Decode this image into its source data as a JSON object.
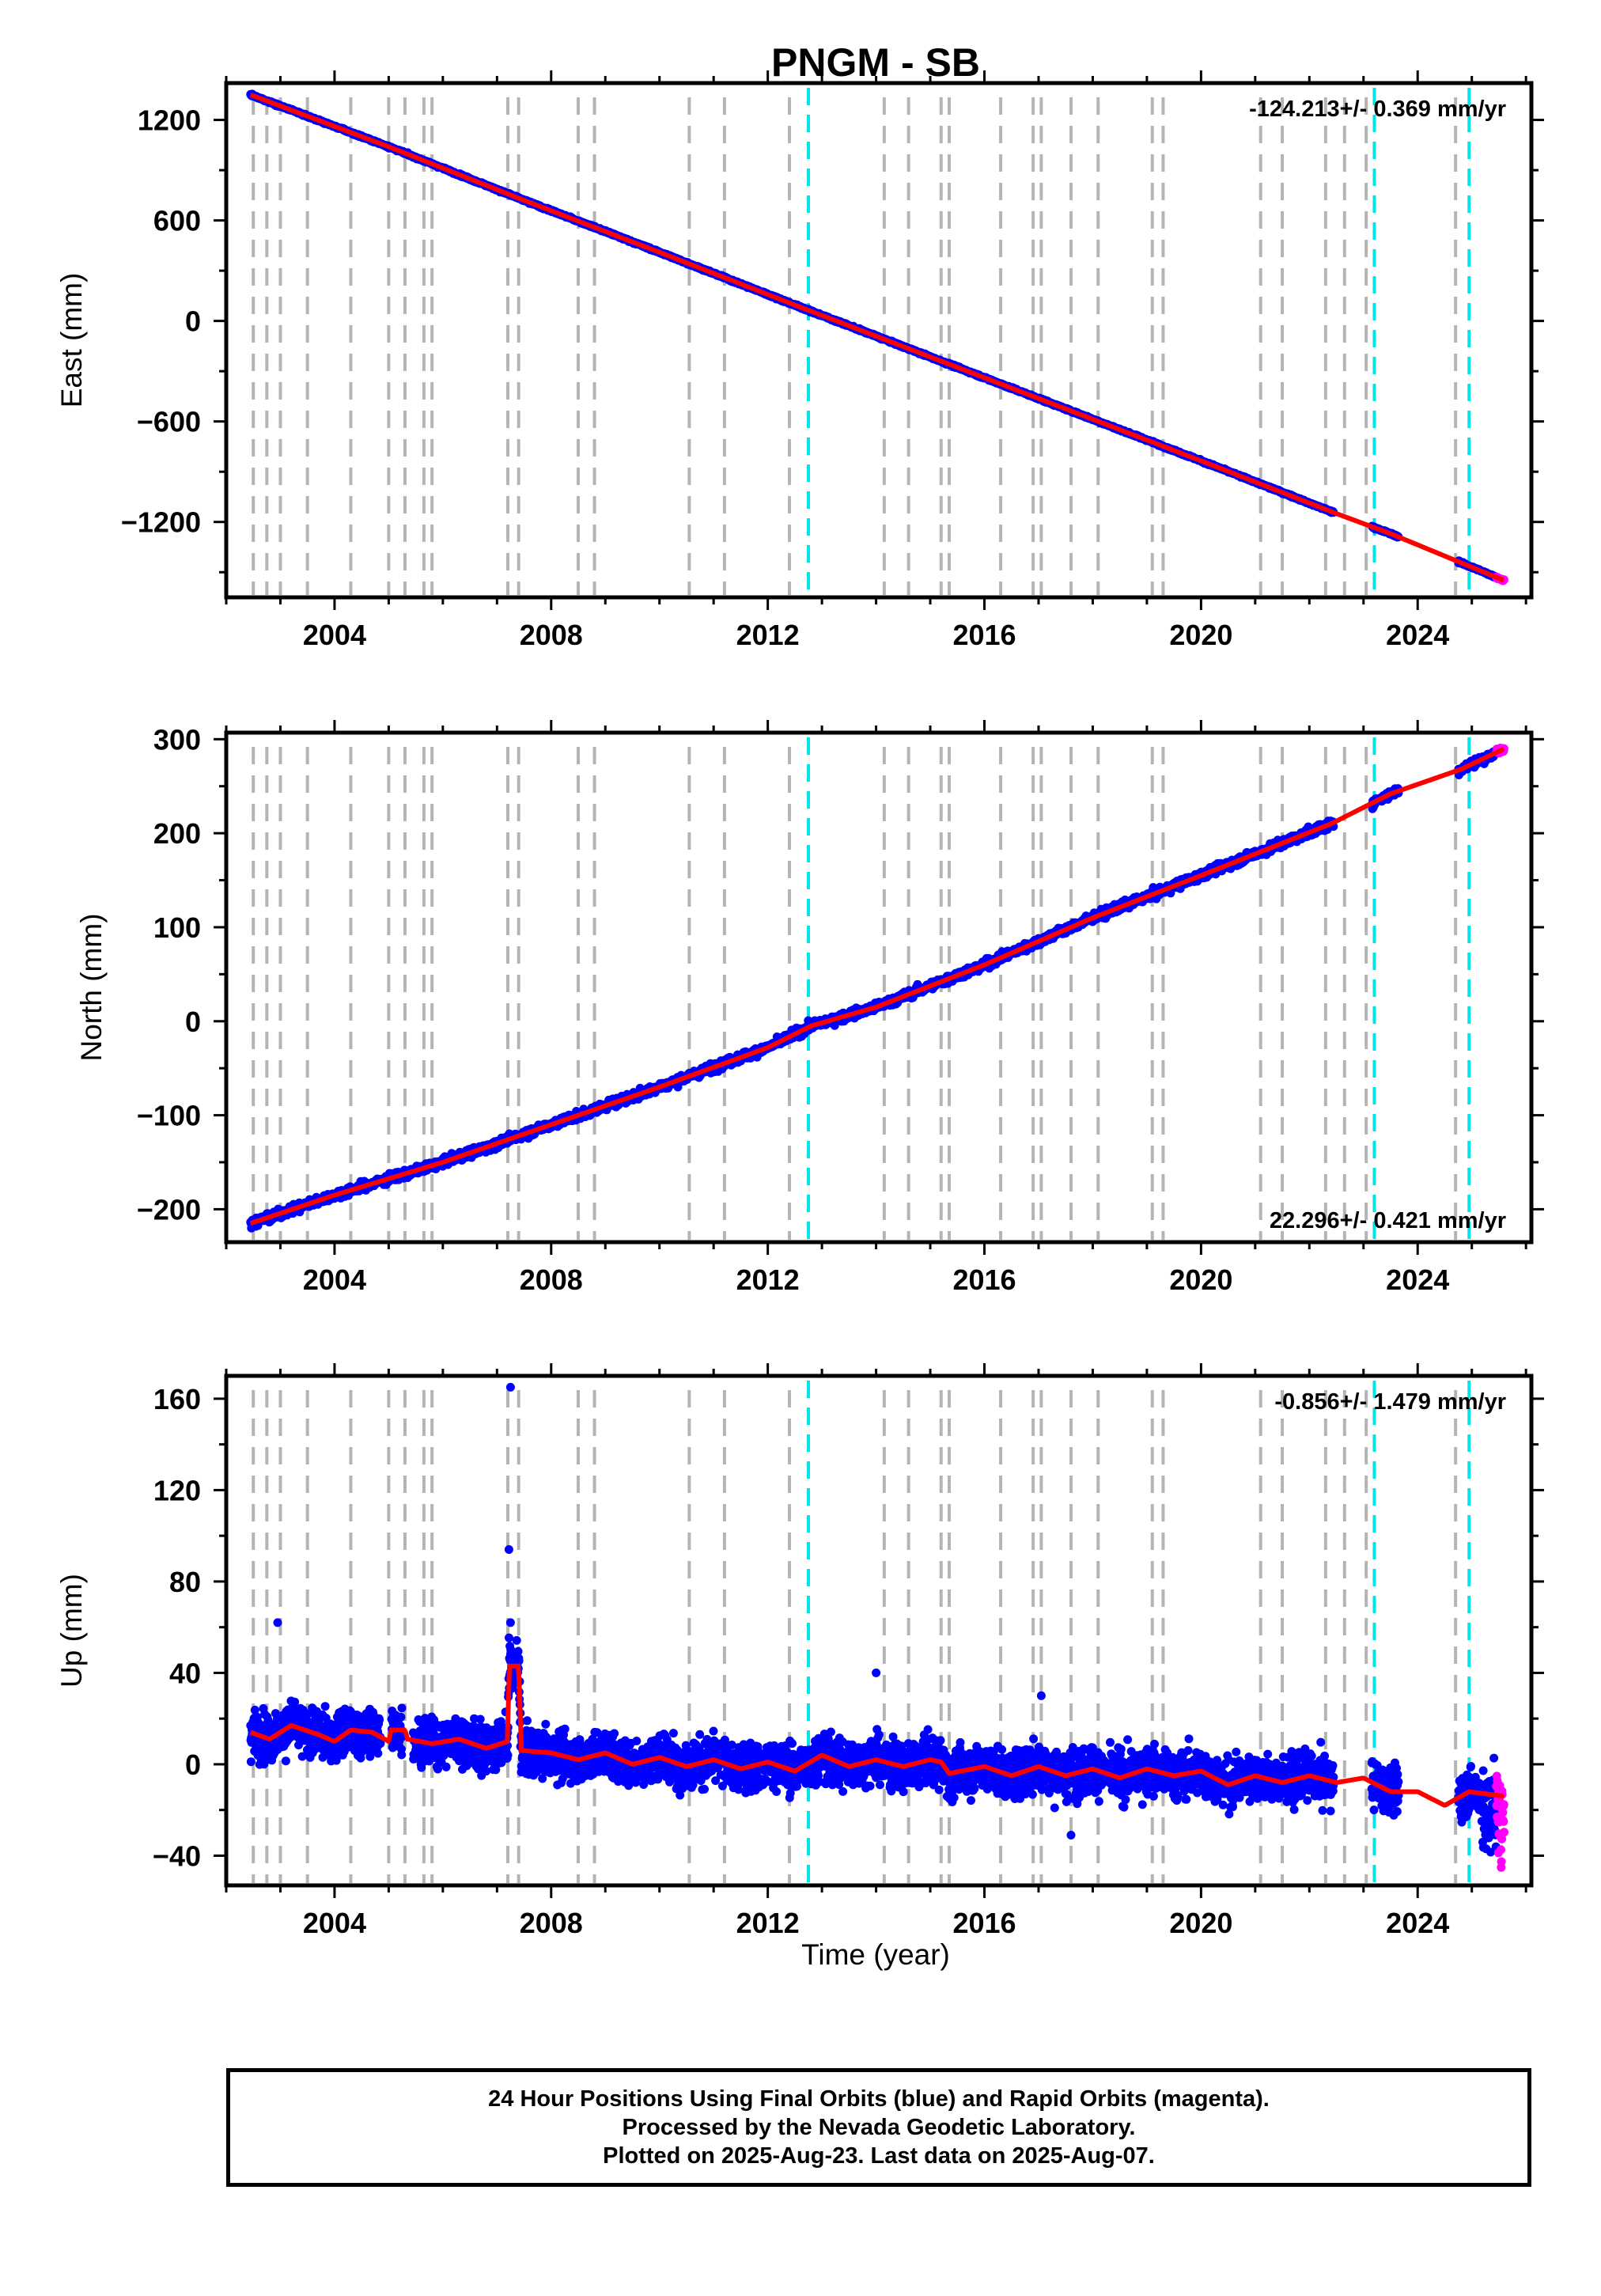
{
  "figure": {
    "title": "PNGM - SB",
    "xlabel": "Time (year)"
  },
  "footer": {
    "lines": [
      "24 Hour Positions Using Final Orbits (blue) and Rapid Orbits (magenta).",
      "Processed by the Nevada Geodetic Laboratory.",
      "Plotted on 2025-Aug-23. Last data on 2025-Aug-07."
    ]
  },
  "colors": {
    "final_orbits": "#0000ff",
    "rapid_orbits": "#ff00ff",
    "model_fit": "#ff0000",
    "equipment_change": "#b4b4b4",
    "earthquake": "#00e5e5"
  },
  "chart_data": [
    {
      "type": "scatter",
      "panel": "east",
      "ylabel": "East (mm)",
      "rate_text": "-124.213+/- 0.369 mm/yr",
      "rate_position": "top-right",
      "xlim": [
        2002.0,
        2026.1
      ],
      "ylim": [
        -1650,
        1420
      ],
      "xticks": [
        2004,
        2008,
        2012,
        2016,
        2020,
        2024
      ],
      "yticks": [
        -1200,
        -600,
        0,
        600,
        1200
      ],
      "yticklabels": [
        "−1200",
        "−600",
        "0",
        "600",
        "1200"
      ],
      "grid": false,
      "equipment_change_epochs": [
        2002.5,
        2002.75,
        2003.0,
        2003.5,
        2004.3,
        2005.0,
        2005.3,
        2005.65,
        2005.8,
        2007.2,
        2007.4,
        2008.5,
        2008.8,
        2010.55,
        2011.2,
        2012.4,
        2014.15,
        2014.6,
        2015.2,
        2015.35,
        2016.3,
        2016.9,
        2017.05,
        2017.6,
        2018.1,
        2019.1,
        2019.3,
        2021.1,
        2021.5,
        2022.3,
        2022.65,
        2023.05,
        2024.7
      ],
      "earthquake_epochs": [
        2012.75,
        2023.2,
        2024.95
      ],
      "data_span": [
        2002.45,
        2025.6
      ],
      "gaps": [
        [
          2022.45,
          2023.15
        ],
        [
          2023.65,
          2024.75
        ]
      ],
      "rapid_orbit_start": 2025.45,
      "model": {
        "points": [
          [
            2002.45,
            1350
          ],
          [
            2005.0,
            1040
          ],
          [
            2007.5,
            720
          ],
          [
            2010.0,
            410
          ],
          [
            2012.5,
            95
          ],
          [
            2015.0,
            -215
          ],
          [
            2017.5,
            -525
          ],
          [
            2020.0,
            -835
          ],
          [
            2022.5,
            -1150
          ],
          [
            2023.5,
            -1270
          ],
          [
            2025.6,
            -1550
          ]
        ]
      }
    },
    {
      "type": "scatter",
      "panel": "north",
      "ylabel": "North (mm)",
      "rate_text": "22.296+/- 0.421 mm/yr",
      "rate_position": "bottom-right",
      "xlim": [
        2002.0,
        2026.1
      ],
      "ylim": [
        -235,
        307
      ],
      "xticks": [
        2004,
        2008,
        2012,
        2016,
        2020,
        2024
      ],
      "yticks": [
        -200,
        -100,
        0,
        100,
        200,
        300
      ],
      "yticklabels": [
        "−200",
        "−100",
        "0",
        "100",
        "200",
        "300"
      ],
      "grid": false,
      "equipment_change_epochs": [
        2002.5,
        2002.75,
        2003.0,
        2003.5,
        2004.3,
        2005.0,
        2005.3,
        2005.65,
        2005.8,
        2007.2,
        2007.4,
        2008.5,
        2008.8,
        2010.55,
        2011.2,
        2012.4,
        2014.15,
        2014.6,
        2015.2,
        2015.35,
        2016.3,
        2016.9,
        2017.05,
        2017.6,
        2018.1,
        2019.1,
        2019.3,
        2021.1,
        2021.5,
        2022.3,
        2022.65,
        2023.05,
        2024.7
      ],
      "earthquake_epochs": [
        2012.75,
        2023.2,
        2024.95
      ],
      "data_span": [
        2002.45,
        2025.6
      ],
      "gaps": [
        [
          2022.45,
          2023.15
        ],
        [
          2023.65,
          2024.75
        ]
      ],
      "rapid_orbit_start": 2025.45,
      "model": {
        "points": [
          [
            2002.45,
            -215
          ],
          [
            2004.0,
            -185
          ],
          [
            2006.0,
            -150
          ],
          [
            2008.0,
            -110
          ],
          [
            2010.0,
            -70
          ],
          [
            2012.0,
            -28
          ],
          [
            2012.8,
            -5
          ],
          [
            2014.0,
            15
          ],
          [
            2016.0,
            60
          ],
          [
            2018.0,
            110
          ],
          [
            2020.0,
            155
          ],
          [
            2022.4,
            210
          ],
          [
            2023.5,
            242
          ],
          [
            2024.8,
            268
          ],
          [
            2025.6,
            290
          ]
        ]
      }
    },
    {
      "type": "scatter",
      "panel": "up",
      "ylabel": "Up (mm)",
      "rate_text": "-0.856+/- 1.479 mm/yr",
      "rate_position": "top-right",
      "xlim": [
        2002.0,
        2026.1
      ],
      "ylim": [
        -53,
        170
      ],
      "xticks": [
        2004,
        2008,
        2012,
        2016,
        2020,
        2024
      ],
      "yticks": [
        -40,
        0,
        40,
        80,
        120,
        160
      ],
      "yticklabels": [
        "−40",
        "0",
        "40",
        "80",
        "120",
        "160"
      ],
      "grid": false,
      "equipment_change_epochs": [
        2002.5,
        2002.75,
        2003.0,
        2003.5,
        2004.3,
        2005.0,
        2005.3,
        2005.65,
        2005.8,
        2007.2,
        2007.4,
        2008.5,
        2008.8,
        2010.55,
        2011.2,
        2012.4,
        2014.15,
        2014.6,
        2015.2,
        2015.35,
        2016.3,
        2016.9,
        2017.05,
        2017.6,
        2018.1,
        2019.1,
        2019.3,
        2021.1,
        2021.5,
        2022.3,
        2022.65,
        2023.05,
        2024.7
      ],
      "earthquake_epochs": [
        2012.75,
        2023.2,
        2024.95
      ],
      "data_span": [
        2002.45,
        2025.6
      ],
      "gaps": [
        [
          2004.85,
          2005.05
        ],
        [
          2005.25,
          2005.45
        ],
        [
          2022.45,
          2023.15
        ],
        [
          2023.65,
          2024.75
        ]
      ],
      "rapid_orbit_start": 2025.45,
      "outliers": [
        [
          2007.25,
          165
        ],
        [
          2007.22,
          94
        ],
        [
          2007.25,
          62
        ],
        [
          2002.95,
          62
        ],
        [
          2014.0,
          40
        ],
        [
          2017.05,
          30
        ],
        [
          2017.6,
          -31
        ]
      ],
      "model": {
        "points": [
          [
            2002.45,
            14
          ],
          [
            2002.8,
            11
          ],
          [
            2003.2,
            17
          ],
          [
            2003.7,
            13
          ],
          [
            2004.0,
            10
          ],
          [
            2004.3,
            15
          ],
          [
            2004.7,
            14
          ],
          [
            2005.0,
            10
          ],
          [
            2005.05,
            15
          ],
          [
            2005.3,
            15
          ],
          [
            2005.35,
            11
          ],
          [
            2005.8,
            9
          ],
          [
            2006.3,
            11
          ],
          [
            2006.8,
            7
          ],
          [
            2007.2,
            10
          ],
          [
            2007.22,
            43
          ],
          [
            2007.4,
            43
          ],
          [
            2007.45,
            6
          ],
          [
            2008.0,
            5
          ],
          [
            2008.5,
            2
          ],
          [
            2009.0,
            5
          ],
          [
            2009.5,
            0
          ],
          [
            2010.0,
            3
          ],
          [
            2010.5,
            -1
          ],
          [
            2011.0,
            2
          ],
          [
            2011.5,
            -2
          ],
          [
            2012.0,
            1
          ],
          [
            2012.5,
            -3
          ],
          [
            2013.0,
            4
          ],
          [
            2013.5,
            -1
          ],
          [
            2014.0,
            2
          ],
          [
            2014.5,
            -1
          ],
          [
            2015.0,
            2
          ],
          [
            2015.2,
            1
          ],
          [
            2015.35,
            -4
          ],
          [
            2016.0,
            -1
          ],
          [
            2016.5,
            -5
          ],
          [
            2017.0,
            -1
          ],
          [
            2017.5,
            -5
          ],
          [
            2018.0,
            -2
          ],
          [
            2018.5,
            -6
          ],
          [
            2019.0,
            -2
          ],
          [
            2019.5,
            -5
          ],
          [
            2020.0,
            -3
          ],
          [
            2020.5,
            -9
          ],
          [
            2021.0,
            -5
          ],
          [
            2021.5,
            -8
          ],
          [
            2022.0,
            -5
          ],
          [
            2022.5,
            -8
          ],
          [
            2023.0,
            -6
          ],
          [
            2023.5,
            -12
          ],
          [
            2024.0,
            -12
          ],
          [
            2024.5,
            -18
          ],
          [
            2024.95,
            -12
          ],
          [
            2025.6,
            -14
          ]
        ]
      }
    }
  ]
}
